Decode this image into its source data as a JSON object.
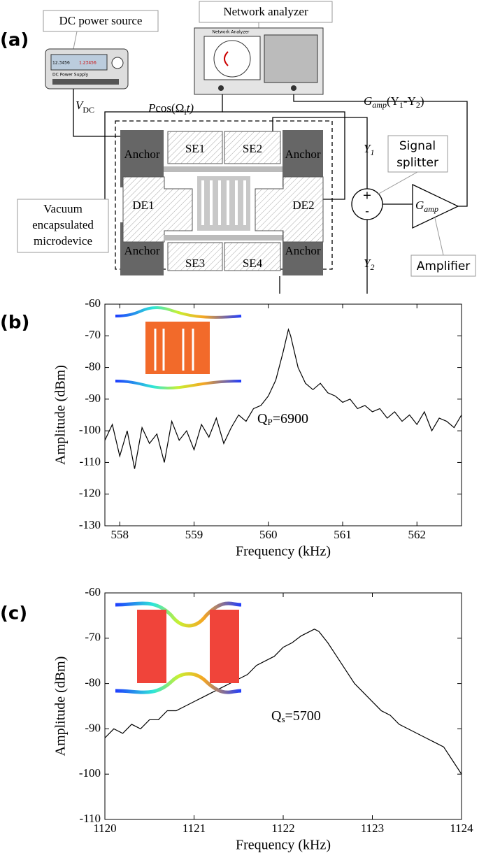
{
  "diagram": {
    "panel": "(a)",
    "dc_source": "DC power source",
    "dc_supply_face": "DC Power Supply",
    "dc_reading_1": "12.3456",
    "dc_reading_2": "1.23456",
    "network_analyzer": "Network analyzer",
    "network_face": "Network Analyzer",
    "vdc": {
      "base": "V",
      "sub": "DC"
    },
    "drive": {
      "base": "P",
      "func": "cos(Ω",
      "sub": "i",
      "end": "t)"
    },
    "feedback": {
      "base": "G",
      "sub": "amp",
      "open": "(Y",
      "sub1": "1",
      "dash": "-Y",
      "sub2": "2",
      "close": ")"
    },
    "y1": {
      "base": "Y",
      "sub": "1"
    },
    "y2": {
      "base": "Y",
      "sub": "2"
    },
    "signal_splitter": [
      "Signal",
      "splitter"
    ],
    "amplifier": "Amplifier",
    "gain": {
      "base": "G",
      "sub": "amp"
    },
    "plus": "+",
    "minus": "-",
    "anchor": "Anchor",
    "electrodes": {
      "se1": "SE1",
      "se2": "SE2",
      "se3": "SE3",
      "se4": "SE4",
      "de1": "DE1",
      "de2": "DE2"
    },
    "vacuum": [
      "Vacuum",
      "encapsulated",
      "microdevice"
    ]
  },
  "chart_data": [
    {
      "type": "line",
      "panel": "(b)",
      "x_label": "Frequency (kHz)",
      "y_label": "Amplitude (dBm)",
      "annotation": {
        "base": "Q",
        "sub": "P",
        "rest": "=6900"
      },
      "xlim": [
        557.8,
        562.6
      ],
      "ylim": [
        -130,
        -60
      ],
      "xticks": [
        558,
        559,
        560,
        561,
        562
      ],
      "yticks": [
        -130,
        -120,
        -110,
        -100,
        -90,
        -80,
        -70,
        -60
      ],
      "series": [
        {
          "color": "#000000",
          "x": [
            557.8,
            557.9,
            558.0,
            558.1,
            558.2,
            558.3,
            558.4,
            558.5,
            558.6,
            558.7,
            558.8,
            558.9,
            559.0,
            559.1,
            559.2,
            559.3,
            559.4,
            559.5,
            559.6,
            559.7,
            559.8,
            559.9,
            560.0,
            560.1,
            560.2,
            560.27,
            560.3,
            560.4,
            560.5,
            560.6,
            560.7,
            560.8,
            560.9,
            561.0,
            561.1,
            561.2,
            561.3,
            561.4,
            561.5,
            561.6,
            561.7,
            561.8,
            561.9,
            562.0,
            562.1,
            562.2,
            562.3,
            562.4,
            562.5,
            562.6
          ],
          "values": [
            -103,
            -98,
            -108,
            -100,
            -112,
            -99,
            -104,
            -101,
            -110,
            -97,
            -103,
            -100,
            -106,
            -98,
            -102,
            -96,
            -104,
            -99,
            -95,
            -97,
            -93,
            -92,
            -89,
            -84,
            -75,
            -68,
            -70,
            -80,
            -85,
            -87,
            -85,
            -88,
            -89,
            -91,
            -90,
            -93,
            -92,
            -94,
            -93,
            -96,
            -94,
            -97,
            -95,
            -98,
            -94,
            -100,
            -96,
            -97,
            -99,
            -95
          ]
        }
      ]
    },
    {
      "type": "line",
      "panel": "(c)",
      "x_label": "Frequency (kHz)",
      "y_label": "Amplitude (dBm)",
      "annotation": {
        "base": "Q",
        "sub": "s",
        "rest": "=5700"
      },
      "xlim": [
        1120,
        1124
      ],
      "ylim": [
        -110,
        -60
      ],
      "xticks": [
        1120,
        1121,
        1122,
        1123,
        1124
      ],
      "yticks": [
        -110,
        -100,
        -90,
        -80,
        -70,
        -60
      ],
      "series": [
        {
          "color": "#000000",
          "x": [
            1120.0,
            1120.1,
            1120.2,
            1120.3,
            1120.4,
            1120.5,
            1120.6,
            1120.7,
            1120.8,
            1120.9,
            1121.0,
            1121.1,
            1121.2,
            1121.3,
            1121.4,
            1121.5,
            1121.6,
            1121.7,
            1121.8,
            1121.9,
            1122.0,
            1122.1,
            1122.2,
            1122.3,
            1122.35,
            1122.4,
            1122.5,
            1122.6,
            1122.7,
            1122.8,
            1122.9,
            1123.0,
            1123.1,
            1123.2,
            1123.3,
            1123.4,
            1123.5,
            1123.6,
            1123.7,
            1123.8,
            1123.9,
            1124.0
          ],
          "values": [
            -92,
            -90,
            -91,
            -89,
            -90,
            -88,
            -88,
            -86,
            -86,
            -85,
            -84,
            -83,
            -82,
            -81,
            -80,
            -79,
            -78,
            -76,
            -75,
            -74,
            -72,
            -71,
            -69.5,
            -68.5,
            -68,
            -68.5,
            -71,
            -74,
            -77,
            -80,
            -82,
            -84,
            -86,
            -87,
            -89,
            -90,
            -91,
            -92,
            -93,
            -94,
            -97,
            -100
          ]
        }
      ]
    }
  ]
}
